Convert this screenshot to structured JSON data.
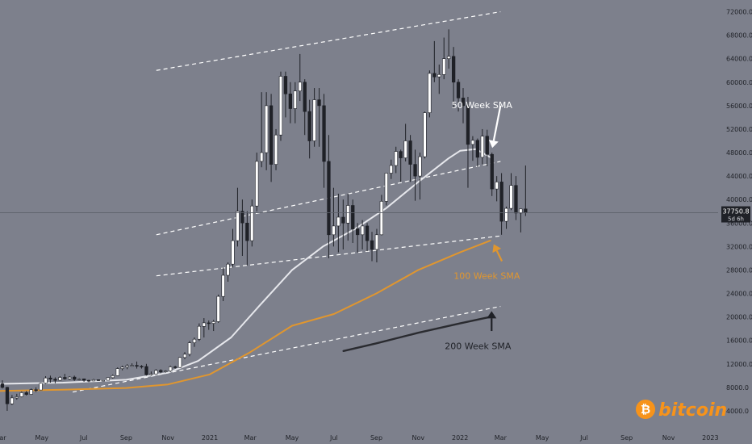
{
  "chart_data": {
    "type": "candlestick",
    "title": "",
    "xlabel": "",
    "ylabel": "",
    "x_range": [
      "2020-03-01",
      "2023-01-10"
    ],
    "ylim": [
      0,
      74000
    ],
    "y_ticks": [
      {
        "value": 4000,
        "label": "4000.0"
      },
      {
        "value": 8000,
        "label": "8000.0"
      },
      {
        "value": 12000,
        "label": "12000.0"
      },
      {
        "value": 16000,
        "label": "16000.0"
      },
      {
        "value": 20000,
        "label": "20000.0"
      },
      {
        "value": 24000,
        "label": "24000.0"
      },
      {
        "value": 28000,
        "label": "28000.0"
      },
      {
        "value": 32000,
        "label": "32000.0"
      },
      {
        "value": 36000,
        "label": "36000.0"
      },
      {
        "value": 40000,
        "label": "40000.0"
      },
      {
        "value": 44000,
        "label": "44000.0"
      },
      {
        "value": 48000,
        "label": "48000.0"
      },
      {
        "value": 52000,
        "label": "52000.0"
      },
      {
        "value": 56000,
        "label": "56000.0"
      },
      {
        "value": 60000,
        "label": "60000.0"
      },
      {
        "value": 64000,
        "label": "64000.0"
      },
      {
        "value": 68000,
        "label": "68000.0"
      },
      {
        "value": 72000,
        "label": "72000.0"
      }
    ],
    "x_ticks": [
      {
        "date": "2020-03-01",
        "label": "Mar"
      },
      {
        "date": "2020-05-01",
        "label": "May"
      },
      {
        "date": "2020-07-01",
        "label": "Jul"
      },
      {
        "date": "2020-09-01",
        "label": "Sep"
      },
      {
        "date": "2020-11-01",
        "label": "Nov"
      },
      {
        "date": "2021-01-01",
        "label": "2021"
      },
      {
        "date": "2021-03-01",
        "label": "Mar"
      },
      {
        "date": "2021-05-01",
        "label": "May"
      },
      {
        "date": "2021-07-01",
        "label": "Jul"
      },
      {
        "date": "2021-09-01",
        "label": "Sep"
      },
      {
        "date": "2021-11-01",
        "label": "Nov"
      },
      {
        "date": "2022-01-01",
        "label": "2022"
      },
      {
        "date": "2022-03-01",
        "label": "Mar"
      },
      {
        "date": "2022-05-01",
        "label": "May"
      },
      {
        "date": "2022-07-01",
        "label": "Jul"
      },
      {
        "date": "2022-09-01",
        "label": "Sep"
      },
      {
        "date": "2022-11-01",
        "label": "Nov"
      },
      {
        "date": "2023-01-01",
        "label": "2023"
      }
    ],
    "price_label": {
      "value": 37750.8,
      "text": "37750.8",
      "subtext": "5d 6h",
      "color": "#1f2127"
    },
    "candles": {
      "interval_days": 7,
      "start_date": "2020-03-01",
      "ohlc": [
        [
          8600,
          9200,
          7800,
          8000
        ],
        [
          8000,
          8100,
          4000,
          5200
        ],
        [
          5200,
          6700,
          5000,
          6200
        ],
        [
          6200,
          6900,
          5900,
          6400
        ],
        [
          6400,
          7300,
          6300,
          7100
        ],
        [
          7100,
          7400,
          6600,
          6800
        ],
        [
          6800,
          7800,
          6750,
          7600
        ],
        [
          7600,
          8000,
          7200,
          7550
        ],
        [
          7550,
          8800,
          7500,
          8700
        ],
        [
          8700,
          9900,
          8600,
          9600
        ],
        [
          9600,
          10000,
          8800,
          9400
        ],
        [
          9400,
          9700,
          8700,
          9200
        ],
        [
          9200,
          9900,
          9100,
          9700
        ],
        [
          9700,
          10300,
          9300,
          9450
        ],
        [
          9450,
          9900,
          9300,
          9750
        ],
        [
          9750,
          10000,
          9100,
          9350
        ],
        [
          9350,
          9600,
          9200,
          9450
        ],
        [
          9450,
          9500,
          8950,
          9200
        ],
        [
          9200,
          9300,
          8900,
          9100
        ],
        [
          9100,
          9450,
          9050,
          9300
        ],
        [
          9300,
          9300,
          9100,
          9150
        ],
        [
          9150,
          9200,
          9050,
          9200
        ],
        [
          9200,
          9700,
          9150,
          9650
        ],
        [
          9650,
          10200,
          9500,
          10000
        ],
        [
          10000,
          11400,
          9950,
          11200
        ],
        [
          11200,
          11700,
          10900,
          11450
        ],
        [
          11450,
          11950,
          11100,
          11700
        ],
        [
          11700,
          12100,
          11500,
          11750
        ],
        [
          11750,
          12400,
          11200,
          11600
        ],
        [
          11600,
          11800,
          11200,
          11550
        ],
        [
          11550,
          12000,
          10000,
          10150
        ],
        [
          10150,
          10700,
          10000,
          10300
        ],
        [
          10300,
          11100,
          10200,
          10900
        ],
        [
          10900,
          11100,
          10400,
          10650
        ],
        [
          10650,
          10900,
          10500,
          10780
        ],
        [
          10780,
          11700,
          10600,
          11500
        ],
        [
          11500,
          11700,
          11200,
          11400
        ],
        [
          11400,
          13200,
          11300,
          13100
        ],
        [
          13100,
          14000,
          12800,
          13650
        ],
        [
          13650,
          15900,
          13300,
          15600
        ],
        [
          15600,
          16500,
          14900,
          16200
        ],
        [
          16200,
          18900,
          15900,
          18400
        ],
        [
          18400,
          19800,
          16500,
          19000
        ],
        [
          19000,
          19400,
          17800,
          18900
        ],
        [
          18900,
          19500,
          17600,
          19200
        ],
        [
          19200,
          23800,
          19000,
          23500
        ],
        [
          23500,
          28400,
          22700,
          27100
        ],
        [
          27100,
          29300,
          26000,
          29000
        ],
        [
          29000,
          35000,
          28400,
          33000
        ],
        [
          33000,
          42000,
          32000,
          38000
        ],
        [
          38000,
          40000,
          30400,
          36000
        ],
        [
          36000,
          38000,
          28800,
          33000
        ],
        [
          33000,
          40000,
          32000,
          38900
        ],
        [
          38900,
          48000,
          38000,
          46500
        ],
        [
          46500,
          58300,
          45500,
          48000
        ],
        [
          48000,
          58300,
          45000,
          56000
        ],
        [
          56000,
          58000,
          43000,
          46000
        ],
        [
          46000,
          52000,
          45000,
          51000
        ],
        [
          51000,
          61800,
          50000,
          61000
        ],
        [
          61000,
          61800,
          54000,
          58000
        ],
        [
          58000,
          60000,
          53000,
          55500
        ],
        [
          55500,
          60000,
          53000,
          58500
        ],
        [
          58500,
          64800,
          56800,
          60000
        ],
        [
          60000,
          60500,
          51000,
          55000
        ],
        [
          55000,
          57000,
          47000,
          50000
        ],
        [
          50000,
          59000,
          49000,
          57000
        ],
        [
          57000,
          59000,
          49000,
          56000
        ],
        [
          56000,
          58000,
          42000,
          46500
        ],
        [
          46500,
          51000,
          30000,
          34000
        ],
        [
          34000,
          42000,
          32000,
          35500
        ],
        [
          35500,
          41000,
          31000,
          37000
        ],
        [
          37000,
          40000,
          31500,
          36000
        ],
        [
          36000,
          41000,
          33000,
          39000
        ],
        [
          39000,
          40000,
          32600,
          35000
        ],
        [
          35000,
          36000,
          31000,
          34000
        ],
        [
          34000,
          36500,
          31500,
          35500
        ],
        [
          35500,
          36000,
          31200,
          33000
        ],
        [
          33000,
          34500,
          29500,
          31500
        ],
        [
          31500,
          35000,
          29300,
          34000
        ],
        [
          34000,
          40800,
          33900,
          39700
        ],
        [
          39700,
          44000,
          39000,
          44500
        ],
        [
          44500,
          46800,
          43500,
          45800
        ],
        [
          45800,
          49000,
          44500,
          48200
        ],
        [
          48200,
          48500,
          43000,
          47100
        ],
        [
          47100,
          52900,
          46500,
          50000
        ],
        [
          50000,
          51000,
          43000,
          46000
        ],
        [
          46000,
          48500,
          39800,
          44000
        ],
        [
          44000,
          48000,
          40000,
          47300
        ],
        [
          47300,
          55000,
          47000,
          54800
        ],
        [
          54800,
          62000,
          54000,
          61500
        ],
        [
          61500,
          67000,
          60000,
          60900
        ],
        [
          60900,
          63000,
          58000,
          61300
        ],
        [
          61300,
          67600,
          60500,
          64000
        ],
        [
          64000,
          69000,
          62300,
          64400
        ],
        [
          64400,
          66000,
          55600,
          60000
        ],
        [
          60000,
          60500,
          55000,
          57300
        ],
        [
          57300,
          59000,
          53000,
          56000
        ],
        [
          56000,
          57500,
          42000,
          49400
        ],
        [
          49400,
          50800,
          46600,
          50100
        ],
        [
          50100,
          50400,
          45600,
          47200
        ],
        [
          47200,
          52000,
          46000,
          50800
        ],
        [
          50800,
          51900,
          45700,
          47700
        ],
        [
          47700,
          48000,
          40600,
          41800
        ],
        [
          41800,
          44000,
          39700,
          43000
        ],
        [
          43000,
          44500,
          34000,
          36300
        ],
        [
          36300,
          38800,
          35000,
          38500
        ],
        [
          38500,
          44500,
          38200,
          42400
        ],
        [
          42400,
          44000,
          36500,
          37700
        ],
        [
          37700,
          38200,
          34400,
          38400
        ],
        [
          38400,
          45800,
          37200,
          37750
        ]
      ]
    },
    "moving_averages": [
      {
        "name": "50 Week SMA",
        "color": "#e6e7ec",
        "points": [
          [
            "2020-03-01",
            8600
          ],
          [
            "2020-06-01",
            8800
          ],
          [
            "2020-09-01",
            9300
          ],
          [
            "2020-11-01",
            10500
          ],
          [
            "2020-12-15",
            12500
          ],
          [
            "2021-02-01",
            16500
          ],
          [
            "2021-03-15",
            22000
          ],
          [
            "2021-05-01",
            28000
          ],
          [
            "2021-06-15",
            32000
          ],
          [
            "2021-08-01",
            35000
          ],
          [
            "2021-09-15",
            38500
          ],
          [
            "2021-11-01",
            43000
          ],
          [
            "2021-12-15",
            47000
          ],
          [
            "2022-01-01",
            48300
          ],
          [
            "2022-01-24",
            48600
          ],
          [
            "2022-02-14",
            47200
          ]
        ]
      },
      {
        "name": "100 Week SMA",
        "color": "#e0962f",
        "points": [
          [
            "2020-03-01",
            7400
          ],
          [
            "2020-06-01",
            7600
          ],
          [
            "2020-09-01",
            7900
          ],
          [
            "2020-11-01",
            8500
          ],
          [
            "2021-01-01",
            10200
          ],
          [
            "2021-03-01",
            14000
          ],
          [
            "2021-05-01",
            18500
          ],
          [
            "2021-07-01",
            20500
          ],
          [
            "2021-09-01",
            24000
          ],
          [
            "2021-11-01",
            28000
          ],
          [
            "2022-01-01",
            31000
          ],
          [
            "2022-02-14",
            33000
          ]
        ]
      },
      {
        "name": "200 Week SMA",
        "color": "#2a2b30",
        "points": [
          [
            "2021-07-15",
            14200
          ],
          [
            "2021-09-01",
            15500
          ],
          [
            "2021-11-01",
            17300
          ],
          [
            "2022-01-01",
            18900
          ],
          [
            "2022-02-14",
            20000
          ]
        ]
      }
    ],
    "channel_lines": [
      {
        "start": [
          "2020-10-15",
          62000
        ],
        "end": [
          "2022-03-01",
          72000
        ]
      },
      {
        "start": [
          "2020-10-15",
          34000
        ],
        "end": [
          "2022-03-01",
          46500
        ]
      },
      {
        "start": [
          "2020-10-15",
          27000
        ],
        "end": [
          "2022-03-01",
          33800
        ]
      },
      {
        "start": [
          "2020-06-15",
          7200
        ],
        "end": [
          "2022-03-01",
          21800
        ]
      }
    ],
    "annotations": [
      {
        "text": "50 Week SMA",
        "color": "#ffffff",
        "at": [
          "2022-02-02",
          55600
        ]
      },
      {
        "text": "100 Week SMA",
        "color": "#e0962f",
        "at": [
          "2022-02-09",
          26500
        ]
      },
      {
        "text": "200 Week SMA",
        "color": "#1f2127",
        "at": [
          "2022-01-27",
          14500
        ]
      }
    ],
    "arrows": [
      {
        "color": "#ffffff",
        "from": [
          "2022-03-01",
          56000
        ],
        "to": [
          "2022-02-17",
          48800
        ]
      },
      {
        "color": "#e0962f",
        "from": [
          "2022-03-03",
          29500
        ],
        "to": [
          "2022-02-19",
          32400
        ]
      },
      {
        "color": "#1f2127",
        "from": [
          "2022-02-16",
          17600
        ],
        "to": [
          "2022-02-16",
          21000
        ]
      }
    ],
    "logo_text": "bitcoin",
    "logo_color": "#f7931a",
    "up_color": "#ffffff",
    "down_color": "#1f2127",
    "channel_color": "#ffffff"
  }
}
